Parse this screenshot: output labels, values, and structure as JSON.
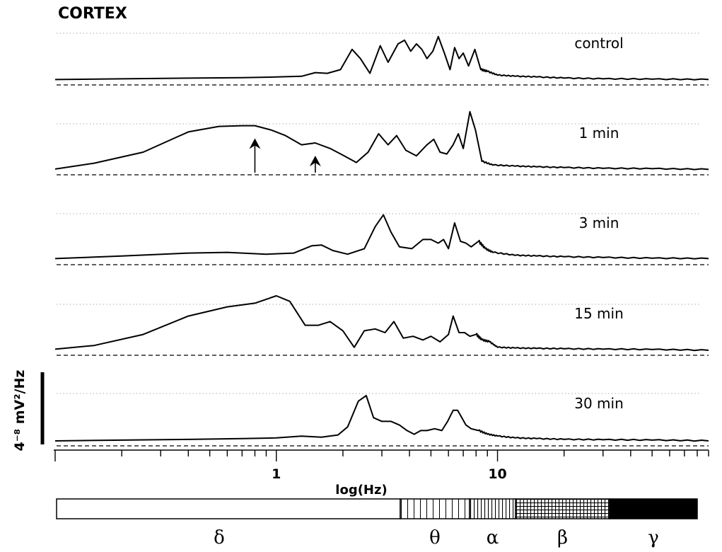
{
  "chart_data": {
    "type": "line",
    "title": "CORTEX",
    "xlabel": "log(Hz)",
    "ylabel": "4⁻⁸ mV²/Hz",
    "xscale": "log",
    "xlim": [
      0.1,
      90
    ],
    "x_tick_labels": [
      {
        "value": 1,
        "label": "1"
      },
      {
        "value": 10,
        "label": "10"
      }
    ],
    "grid": "dotted reference line per trace",
    "baseline": "dashed line per trace",
    "series": [
      {
        "name": "control",
        "points": [
          [
            0.1,
            0.03
          ],
          [
            0.2,
            0.05
          ],
          [
            0.4,
            0.07
          ],
          [
            0.7,
            0.08
          ],
          [
            1.0,
            0.1
          ],
          [
            1.3,
            0.12
          ],
          [
            1.5,
            0.22
          ],
          [
            1.7,
            0.2
          ],
          [
            1.95,
            0.3
          ],
          [
            2.2,
            0.85
          ],
          [
            2.4,
            0.6
          ],
          [
            2.65,
            0.2
          ],
          [
            2.95,
            0.95
          ],
          [
            3.2,
            0.5
          ],
          [
            3.55,
            1.0
          ],
          [
            3.8,
            1.1
          ],
          [
            4.05,
            0.8
          ],
          [
            4.3,
            1.0
          ],
          [
            4.55,
            0.85
          ],
          [
            4.8,
            0.6
          ],
          [
            5.1,
            0.8
          ],
          [
            5.4,
            1.2
          ],
          [
            5.75,
            0.75
          ],
          [
            6.1,
            0.3
          ],
          [
            6.4,
            0.9
          ],
          [
            6.7,
            0.6
          ],
          [
            7.0,
            0.75
          ],
          [
            7.4,
            0.4
          ],
          [
            7.9,
            0.85
          ],
          [
            8.4,
            0.3
          ],
          [
            9.0,
            0.25
          ],
          [
            10,
            0.15
          ],
          [
            12,
            0.12
          ],
          [
            15,
            0.1
          ],
          [
            20,
            0.07
          ],
          [
            30,
            0.05
          ],
          [
            50,
            0.04
          ],
          [
            90,
            0.03
          ]
        ]
      },
      {
        "name": "1 min",
        "points": [
          [
            0.1,
            0.04
          ],
          [
            0.15,
            0.2
          ],
          [
            0.25,
            0.5
          ],
          [
            0.4,
            1.05
          ],
          [
            0.55,
            1.2
          ],
          [
            0.7,
            1.22
          ],
          [
            0.8,
            1.22
          ],
          [
            0.95,
            1.1
          ],
          [
            1.1,
            0.95
          ],
          [
            1.3,
            0.7
          ],
          [
            1.5,
            0.75
          ],
          [
            1.75,
            0.6
          ],
          [
            2.0,
            0.42
          ],
          [
            2.3,
            0.22
          ],
          [
            2.6,
            0.5
          ],
          [
            2.9,
            1.0
          ],
          [
            3.2,
            0.7
          ],
          [
            3.5,
            0.95
          ],
          [
            3.85,
            0.55
          ],
          [
            4.3,
            0.4
          ],
          [
            4.8,
            0.7
          ],
          [
            5.15,
            0.85
          ],
          [
            5.5,
            0.5
          ],
          [
            5.9,
            0.45
          ],
          [
            6.3,
            0.7
          ],
          [
            6.65,
            1.0
          ],
          [
            7.0,
            0.6
          ],
          [
            7.5,
            1.6
          ],
          [
            7.95,
            1.1
          ],
          [
            8.5,
            0.25
          ],
          [
            9.5,
            0.15
          ],
          [
            12,
            0.12
          ],
          [
            15,
            0.1
          ],
          [
            20,
            0.08
          ],
          [
            30,
            0.06
          ],
          [
            50,
            0.05
          ],
          [
            90,
            0.03
          ]
        ]
      },
      {
        "name": "3 min",
        "points": [
          [
            0.1,
            0.03
          ],
          [
            0.2,
            0.1
          ],
          [
            0.4,
            0.18
          ],
          [
            0.6,
            0.2
          ],
          [
            0.9,
            0.15
          ],
          [
            1.2,
            0.18
          ],
          [
            1.45,
            0.38
          ],
          [
            1.6,
            0.4
          ],
          [
            1.8,
            0.25
          ],
          [
            2.1,
            0.15
          ],
          [
            2.5,
            0.3
          ],
          [
            2.8,
            0.9
          ],
          [
            3.05,
            1.22
          ],
          [
            3.3,
            0.75
          ],
          [
            3.6,
            0.35
          ],
          [
            4.1,
            0.3
          ],
          [
            4.6,
            0.55
          ],
          [
            5.0,
            0.55
          ],
          [
            5.4,
            0.45
          ],
          [
            5.7,
            0.55
          ],
          [
            6.0,
            0.3
          ],
          [
            6.4,
            1.0
          ],
          [
            6.8,
            0.5
          ],
          [
            7.2,
            0.45
          ],
          [
            7.6,
            0.35
          ],
          [
            8.2,
            0.5
          ],
          [
            8.8,
            0.3
          ],
          [
            9.5,
            0.2
          ],
          [
            12,
            0.12
          ],
          [
            15,
            0.1
          ],
          [
            20,
            0.08
          ],
          [
            30,
            0.06
          ],
          [
            50,
            0.04
          ],
          [
            90,
            0.03
          ]
        ]
      },
      {
        "name": "15 min",
        "points": [
          [
            0.1,
            0.05
          ],
          [
            0.15,
            0.15
          ],
          [
            0.25,
            0.45
          ],
          [
            0.4,
            0.95
          ],
          [
            0.6,
            1.2
          ],
          [
            0.8,
            1.3
          ],
          [
            1.0,
            1.5
          ],
          [
            1.15,
            1.35
          ],
          [
            1.35,
            0.7
          ],
          [
            1.55,
            0.7
          ],
          [
            1.75,
            0.8
          ],
          [
            2.0,
            0.55
          ],
          [
            2.25,
            0.1
          ],
          [
            2.5,
            0.55
          ],
          [
            2.8,
            0.6
          ],
          [
            3.1,
            0.5
          ],
          [
            3.4,
            0.8
          ],
          [
            3.75,
            0.35
          ],
          [
            4.15,
            0.4
          ],
          [
            4.6,
            0.3
          ],
          [
            5.0,
            0.4
          ],
          [
            5.5,
            0.25
          ],
          [
            6.0,
            0.45
          ],
          [
            6.3,
            0.95
          ],
          [
            6.7,
            0.5
          ],
          [
            7.1,
            0.5
          ],
          [
            7.5,
            0.4
          ],
          [
            8.0,
            0.45
          ],
          [
            8.5,
            0.3
          ],
          [
            9.2,
            0.25
          ],
          [
            10,
            0.1
          ],
          [
            12,
            0.08
          ],
          [
            15,
            0.07
          ],
          [
            20,
            0.06
          ],
          [
            30,
            0.05
          ],
          [
            50,
            0.04
          ],
          [
            90,
            0.02
          ]
        ]
      },
      {
        "name": "30 min",
        "points": [
          [
            0.1,
            0.02
          ],
          [
            0.2,
            0.04
          ],
          [
            0.4,
            0.06
          ],
          [
            0.7,
            0.08
          ],
          [
            1.0,
            0.1
          ],
          [
            1.3,
            0.15
          ],
          [
            1.6,
            0.12
          ],
          [
            1.9,
            0.18
          ],
          [
            2.1,
            0.4
          ],
          [
            2.35,
            1.1
          ],
          [
            2.55,
            1.25
          ],
          [
            2.75,
            0.65
          ],
          [
            3.0,
            0.55
          ],
          [
            3.3,
            0.55
          ],
          [
            3.6,
            0.45
          ],
          [
            3.9,
            0.3
          ],
          [
            4.2,
            0.2
          ],
          [
            4.5,
            0.3
          ],
          [
            4.8,
            0.3
          ],
          [
            5.2,
            0.35
          ],
          [
            5.6,
            0.3
          ],
          [
            5.95,
            0.55
          ],
          [
            6.3,
            0.85
          ],
          [
            6.6,
            0.85
          ],
          [
            6.9,
            0.65
          ],
          [
            7.2,
            0.45
          ],
          [
            7.6,
            0.35
          ],
          [
            8.2,
            0.3
          ],
          [
            9.0,
            0.2
          ],
          [
            10,
            0.15
          ],
          [
            12,
            0.1
          ],
          [
            15,
            0.08
          ],
          [
            20,
            0.06
          ],
          [
            30,
            0.05
          ],
          [
            50,
            0.04
          ],
          [
            90,
            0.02
          ]
        ]
      }
    ],
    "frequency_bands": [
      {
        "name": "δ",
        "start": 0.1,
        "end": 4,
        "pattern": "open"
      },
      {
        "name": "θ",
        "start": 4,
        "end": 8,
        "pattern": "vertical lines"
      },
      {
        "name": "α",
        "start": 8,
        "end": 12,
        "pattern": "dense vertical lines"
      },
      {
        "name": "β",
        "start": 12,
        "end": 30,
        "pattern": "grid"
      },
      {
        "name": "γ",
        "start": 30,
        "end": 90,
        "pattern": "solid"
      }
    ],
    "annotations": [
      {
        "type": "arrow",
        "series": "1 min",
        "x": 0.8
      },
      {
        "type": "arrow",
        "series": "1 min",
        "x": 1.5
      }
    ],
    "colors": {
      "line": "#000000",
      "background": "#ffffff",
      "gridline": "#999999"
    }
  }
}
